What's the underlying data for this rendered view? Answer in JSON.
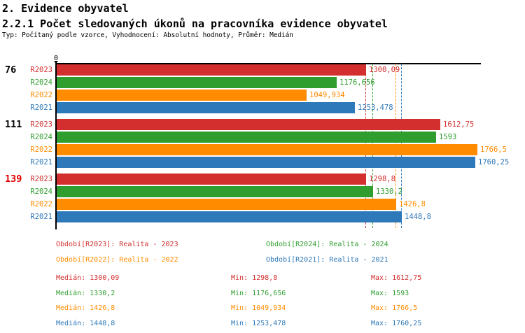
{
  "header": {
    "title1": "2. Evidence obyvatel",
    "title2": "2.2.1 Počet sledovaných úkonů na pracovníka evidence obyvatel",
    "subtitle": "Typ: Počítaný podle vzorce, Vyhodnocení: Absolutní hodnoty, Průměr: Medián"
  },
  "colors": {
    "axis": "#000000",
    "group_label": "#000000",
    "group_label_highlighted": "#e00000"
  },
  "chart_data": {
    "type": "bar",
    "orientation": "horizontal",
    "title": "2.2.1 Počet sledovaných úkonů na pracovníka evidence obyvatel",
    "x_axis_zero_label": "0",
    "xlim": [
      0,
      1785
    ],
    "grid": false,
    "series": [
      {
        "id": "R2023",
        "name": "Realita - 2023",
        "color": "#d32f2f"
      },
      {
        "id": "R2024",
        "name": "Realita - 2024",
        "color": "#2f9e2f"
      },
      {
        "id": "R2022",
        "name": "Realita - 2022",
        "color": "#ff8c00"
      },
      {
        "id": "R2021",
        "name": "Realita - 2021",
        "color": "#2e79b9"
      }
    ],
    "groups": [
      {
        "label": "76",
        "highlighted": false,
        "values": [
          {
            "series": "R2023",
            "value": 1300.09,
            "display": "1300,09"
          },
          {
            "series": "R2024",
            "value": 1176.656,
            "display": "1176,656"
          },
          {
            "series": "R2022",
            "value": 1049.934,
            "display": "1049,934"
          },
          {
            "series": "R2021",
            "value": 1253.478,
            "display": "1253,478"
          }
        ]
      },
      {
        "label": "111",
        "highlighted": false,
        "values": [
          {
            "series": "R2023",
            "value": 1612.75,
            "display": "1612,75"
          },
          {
            "series": "R2024",
            "value": 1593,
            "display": "1593"
          },
          {
            "series": "R2022",
            "value": 1766.5,
            "display": "1766,5"
          },
          {
            "series": "R2021",
            "value": 1760.25,
            "display": "1760,25"
          }
        ]
      },
      {
        "label": "139",
        "highlighted": true,
        "values": [
          {
            "series": "R2023",
            "value": 1298.8,
            "display": "1298,8"
          },
          {
            "series": "R2024",
            "value": 1330.2,
            "display": "1330,2"
          },
          {
            "series": "R2022",
            "value": 1426.8,
            "display": "1426,8"
          },
          {
            "series": "R2021",
            "value": 1448.8,
            "display": "1448,8"
          }
        ]
      }
    ],
    "median_lines": [
      {
        "series": "R2023",
        "value": 1300.09
      },
      {
        "series": "R2024",
        "value": 1330.2
      },
      {
        "series": "R2022",
        "value": 1426.8
      },
      {
        "series": "R2021",
        "value": 1448.8
      }
    ]
  },
  "legend": {
    "items": [
      {
        "series": "R2023",
        "text": "Období[R2023]: Realita - 2023"
      },
      {
        "series": "R2024",
        "text": "Období[R2024]: Realita - 2024"
      },
      {
        "series": "R2022",
        "text": "Období[R2022]: Realita - 2022"
      },
      {
        "series": "R2021",
        "text": "Období[R2021]: Realita - 2021"
      }
    ]
  },
  "stats": {
    "rows": [
      {
        "series": "R2023",
        "median": "Medián: 1300,09",
        "min": "Min: 1298,8",
        "max": "Max: 1612,75"
      },
      {
        "series": "R2024",
        "median": "Medián: 1330,2",
        "min": "Min: 1176,656",
        "max": "Max: 1593"
      },
      {
        "series": "R2022",
        "median": "Medián: 1426,8",
        "min": "Min: 1049,934",
        "max": "Max: 1766,5"
      },
      {
        "series": "R2021",
        "median": "Medián: 1448,8",
        "min": "Min: 1253,478",
        "max": "Max: 1760,25"
      }
    ]
  }
}
